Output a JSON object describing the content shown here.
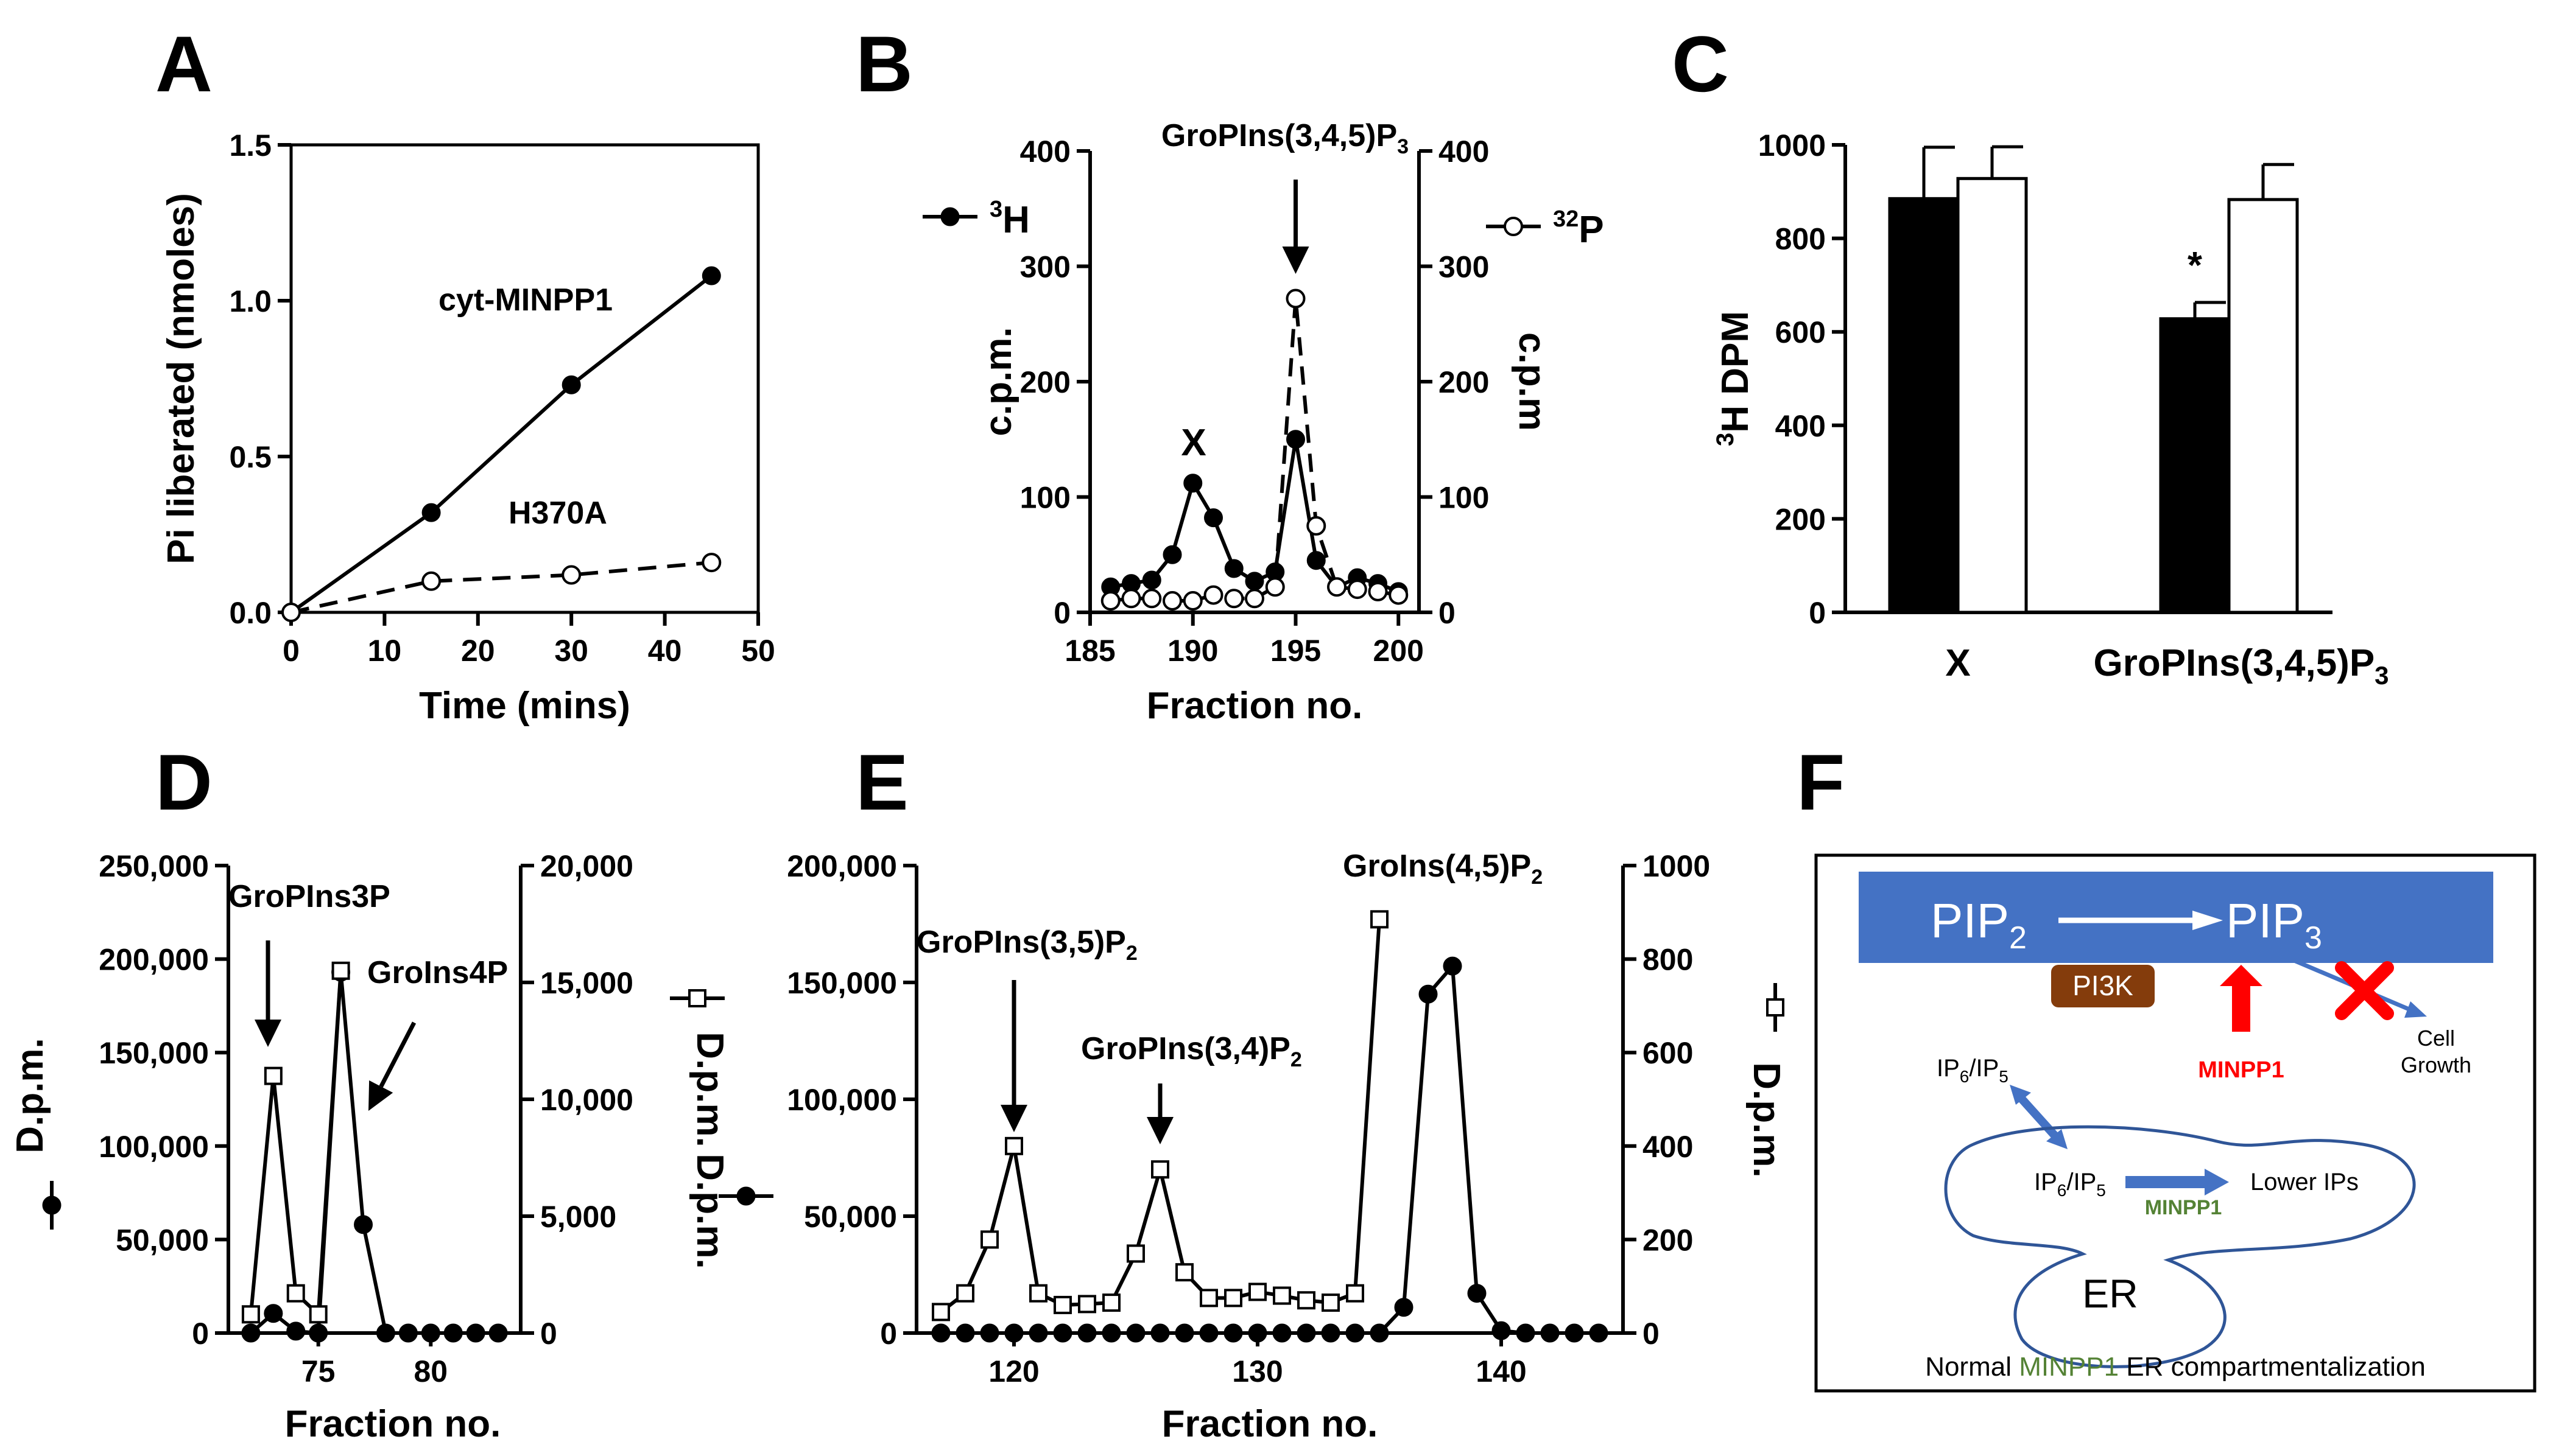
{
  "colors": {
    "membrane": "#4472C4",
    "pi3k": "#843C0C",
    "inhibit": "#FF0000",
    "minpp1_green": "#548235",
    "er_outline": "#2F5597"
  },
  "chart_data": [
    {
      "panel": "A",
      "type": "line",
      "xlabel": "Time (mins)",
      "ylabel": "Pi liberated (nmoles)",
      "xlim": [
        0,
        50
      ],
      "ylim": [
        0,
        1.5
      ],
      "x_ticks": [
        "0",
        "10",
        "20",
        "30",
        "40",
        "50"
      ],
      "y_ticks": [
        "0.0",
        "0.5",
        "1.0",
        "1.5"
      ],
      "series": [
        {
          "name": "cyt-MINPP1",
          "marker": "filled-circle",
          "style": "solid",
          "x": [
            0,
            15,
            30,
            45
          ],
          "y": [
            0.0,
            0.32,
            0.73,
            1.08
          ]
        },
        {
          "name": "H370A",
          "marker": "open-circle",
          "style": "dashed",
          "x": [
            0,
            15,
            30,
            45
          ],
          "y": [
            0.0,
            0.1,
            0.12,
            0.16
          ]
        }
      ]
    },
    {
      "panel": "B",
      "type": "line",
      "xlabel": "Fraction no.",
      "ylabel": "c.p.m.",
      "ylabel_right": "c.p.m",
      "xlim": [
        185,
        201
      ],
      "ylim": [
        0,
        400
      ],
      "ylim_right": [
        0,
        400
      ],
      "x_ticks": [
        "185",
        "190",
        "195",
        "200"
      ],
      "y_ticks": [
        "0",
        "100",
        "200",
        "300",
        "400"
      ],
      "y_ticks_right": [
        "0",
        "100",
        "200",
        "300",
        "400"
      ],
      "legend_left": "3H",
      "legend_right": "32P",
      "peak_label_x": "X",
      "arrow_label": "GroPIns(3,4,5)P",
      "arrow_label_sub": "3",
      "series": [
        {
          "name": "3H",
          "marker": "filled-circle",
          "style": "solid",
          "x": [
            186,
            187,
            188,
            189,
            190,
            191,
            192,
            193,
            194,
            195,
            196,
            197,
            198,
            199,
            200
          ],
          "y": [
            22,
            25,
            28,
            50,
            112,
            82,
            38,
            27,
            35,
            150,
            45,
            22,
            30,
            25,
            18
          ]
        },
        {
          "name": "32P",
          "marker": "open-circle",
          "style": "dashed",
          "x": [
            186,
            187,
            188,
            189,
            190,
            191,
            192,
            193,
            194,
            195,
            196,
            197,
            198,
            199,
            200
          ],
          "y": [
            10,
            12,
            12,
            10,
            10,
            15,
            12,
            12,
            22,
            272,
            75,
            22,
            20,
            18,
            15
          ]
        }
      ]
    },
    {
      "panel": "C",
      "type": "bar",
      "ylabel": "3H DPM",
      "ylim": [
        0,
        1000
      ],
      "y_ticks": [
        "0",
        "200",
        "400",
        "600",
        "800",
        "1000"
      ],
      "categories": [
        "X",
        "GroPIns(3,4,5)P"
      ],
      "category_sub": [
        "",
        "3"
      ],
      "series": [
        {
          "name": "filled",
          "color": "#000000",
          "values": [
            885,
            628
          ],
          "errors": [
            110,
            35
          ]
        },
        {
          "name": "open",
          "color": "#ffffff",
          "values": [
            928,
            883
          ],
          "errors": [
            68,
            75
          ]
        }
      ],
      "significance": "*"
    },
    {
      "panel": "D",
      "type": "line",
      "xlabel": "Fraction no.",
      "ylabel": "D.p.m.",
      "ylabel_right": "D.p.m.",
      "xlim": [
        71,
        84
      ],
      "ylim": [
        0,
        250000
      ],
      "ylim_right": [
        0,
        20000
      ],
      "x_ticks": [
        "75",
        "80"
      ],
      "y_ticks": [
        "0",
        "50,000",
        "100,000",
        "150,000",
        "200,000",
        "250,000"
      ],
      "y_ticks_right": [
        "0",
        "5,000",
        "10,000",
        "15,000",
        "20,000"
      ],
      "label_1": "GroPIns3P",
      "label_2": "GroIns4P",
      "legend_open": "D.p.m.",
      "series": [
        {
          "name": "filled (left axis)",
          "marker": "filled-circle",
          "x": [
            72,
            73,
            74,
            75,
            76,
            77,
            78,
            79,
            80,
            81,
            82,
            83
          ],
          "y": [
            0,
            10500,
            1000,
            0,
            193000,
            58000,
            0,
            0,
            0,
            0,
            0,
            0
          ]
        },
        {
          "name": "open (right axis)",
          "marker": "open-square",
          "x": [
            72,
            73,
            74,
            75,
            76
          ],
          "y": [
            800,
            11000,
            1700,
            800,
            15500
          ]
        }
      ]
    },
    {
      "panel": "E",
      "type": "line",
      "xlabel": "Fraction no.",
      "ylabel_right": "D.p.m.",
      "xlim": [
        116,
        145
      ],
      "ylim": [
        0,
        200000
      ],
      "ylim_right": [
        0,
        1000
      ],
      "x_ticks": [
        "120",
        "130",
        "140"
      ],
      "y_ticks": [
        "0",
        "50,000",
        "100,000",
        "150,000",
        "200,000"
      ],
      "y_ticks_right": [
        "0",
        "200",
        "400",
        "600",
        "800",
        "1000"
      ],
      "label_1": "GroPIns(3,5)P",
      "label_1_sub": "2",
      "label_2": "GroPIns(3,4)P",
      "label_2_sub": "2",
      "label_3": "GroIns(4,5)P",
      "label_3_sub": "2",
      "series": [
        {
          "name": "open (right axis)",
          "marker": "open-square",
          "x": [
            117,
            118,
            119,
            120,
            121,
            122,
            123,
            124,
            125,
            126,
            127,
            128,
            129,
            130,
            131,
            132,
            133,
            134,
            135
          ],
          "y": [
            45,
            85,
            200,
            400,
            85,
            60,
            62,
            65,
            170,
            350,
            130,
            75,
            75,
            88,
            80,
            70,
            65,
            85,
            885
          ]
        },
        {
          "name": "filled (left axis)",
          "marker": "filled-circle",
          "x": [
            117,
            118,
            119,
            120,
            121,
            122,
            123,
            124,
            125,
            126,
            127,
            128,
            129,
            130,
            131,
            132,
            133,
            134,
            135,
            136,
            137,
            138,
            139,
            140,
            141,
            142,
            143,
            144
          ],
          "y": [
            0,
            0,
            0,
            0,
            0,
            0,
            0,
            0,
            0,
            0,
            0,
            0,
            0,
            0,
            0,
            0,
            0,
            0,
            0,
            11000,
            145000,
            157000,
            17000,
            1000,
            0,
            0,
            0,
            0
          ]
        }
      ]
    }
  ],
  "panels": {
    "a": {
      "letter": "A",
      "label_1": "cyt-MINPP1",
      "label_2": "H370A"
    },
    "b": {
      "letter": "B"
    },
    "c": {
      "letter": "C"
    },
    "d": {
      "letter": "D"
    },
    "e": {
      "letter": "E"
    },
    "f": {
      "letter": "F",
      "pip2": "PIP",
      "pip2_sub": "2",
      "pip3": "PIP",
      "pip3_sub": "3",
      "pi3k": "PI3K",
      "minpp1_red": "MINPP1",
      "cell_growth_1": "Cell",
      "cell_growth_2": "Growth",
      "ip_top": "IP",
      "ip_top_sub1": "6",
      "ip_top_mid": "/IP",
      "ip_top_sub2": "5",
      "ip_inner": "IP",
      "ip_inner_sub1": "6",
      "ip_inner_mid": "/IP",
      "ip_inner_sub2": "5",
      "lower_ips": "Lower IPs",
      "minpp1_green": "MINPP1",
      "er": "ER",
      "caption_pre": "Normal ",
      "caption_mid": "MINPP1",
      "caption_post": " ER compartmentalization"
    }
  }
}
